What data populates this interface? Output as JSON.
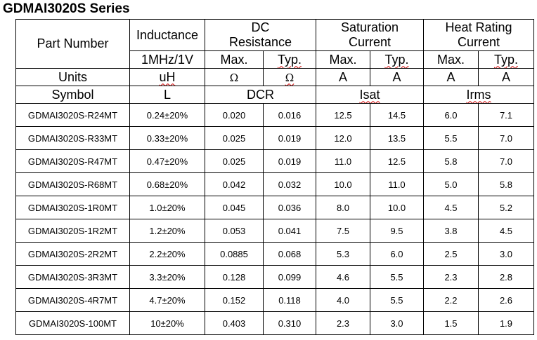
{
  "title": "GDMAI3020S Series",
  "header": {
    "part_number": "Part Number",
    "inductance": "Inductance",
    "dc_resistance": "DC Resistance",
    "saturation_current": "Saturation Current",
    "heat_rating_current": "Heat Rating Current",
    "test_condition": "1MHz/1V",
    "max": "Max.",
    "typ": "Typ.",
    "units_label": "Units",
    "inductance_unit": "uH",
    "ohm": "Ω",
    "amp": "A",
    "symbol_label": "Symbol",
    "inductance_symbol": "L",
    "dcr_symbol": "DCR",
    "isat_symbol": "Isat",
    "irms_symbol": "Irms"
  },
  "rows": [
    {
      "part": "GDMAI3020S-R24MT",
      "inductance": "0.24±20%",
      "dcr_max": "0.020",
      "dcr_typ": "0.016",
      "isat_max": "12.5",
      "isat_typ": "14.5",
      "irms_max": "6.0",
      "irms_typ": "7.1"
    },
    {
      "part": "GDMAI3020S-R33MT",
      "inductance": "0.33±20%",
      "dcr_max": "0.025",
      "dcr_typ": "0.019",
      "isat_max": "12.0",
      "isat_typ": "13.5",
      "irms_max": "5.5",
      "irms_typ": "7.0"
    },
    {
      "part": "GDMAI3020S-R47MT",
      "inductance": "0.47±20%",
      "dcr_max": "0.025",
      "dcr_typ": "0.019",
      "isat_max": "11.0",
      "isat_typ": "12.5",
      "irms_max": "5.8",
      "irms_typ": "7.0"
    },
    {
      "part": "GDMAI3020S-R68MT",
      "inductance": "0.68±20%",
      "dcr_max": "0.042",
      "dcr_typ": "0.032",
      "isat_max": "10.0",
      "isat_typ": "11.0",
      "irms_max": "5.0",
      "irms_typ": "5.8"
    },
    {
      "part": "GDMAI3020S-1R0MT",
      "inductance": "1.0±20%",
      "dcr_max": "0.045",
      "dcr_typ": "0.036",
      "isat_max": "8.0",
      "isat_typ": "10.0",
      "irms_max": "4.5",
      "irms_typ": "5.2"
    },
    {
      "part": "GDMAI3020S-1R2MT",
      "inductance": "1.2±20%",
      "dcr_max": "0.053",
      "dcr_typ": "0.041",
      "isat_max": "7.5",
      "isat_typ": "9.5",
      "irms_max": "3.8",
      "irms_typ": "4.5"
    },
    {
      "part": "GDMAI3020S-2R2MT",
      "inductance": "2.2±20%",
      "dcr_max": "0.0885",
      "dcr_typ": "0.068",
      "isat_max": "5.3",
      "isat_typ": "6.0",
      "irms_max": "2.5",
      "irms_typ": "3.0"
    },
    {
      "part": "GDMAI3020S-3R3MT",
      "inductance": "3.3±20%",
      "dcr_max": "0.128",
      "dcr_typ": "0.099",
      "isat_max": "4.6",
      "isat_typ": "5.5",
      "irms_max": "2.3",
      "irms_typ": "2.8"
    },
    {
      "part": "GDMAI3020S-4R7MT",
      "inductance": "4.7±20%",
      "dcr_max": "0.152",
      "dcr_typ": "0.118",
      "isat_max": "4.0",
      "isat_typ": "5.5",
      "irms_max": "2.2",
      "irms_typ": "2.6"
    },
    {
      "part": "GDMAI3020S-100MT",
      "inductance": "10±20%",
      "dcr_max": "0.403",
      "dcr_typ": "0.310",
      "isat_max": "2.3",
      "isat_typ": "3.0",
      "irms_max": "1.5",
      "irms_typ": "1.9"
    }
  ]
}
